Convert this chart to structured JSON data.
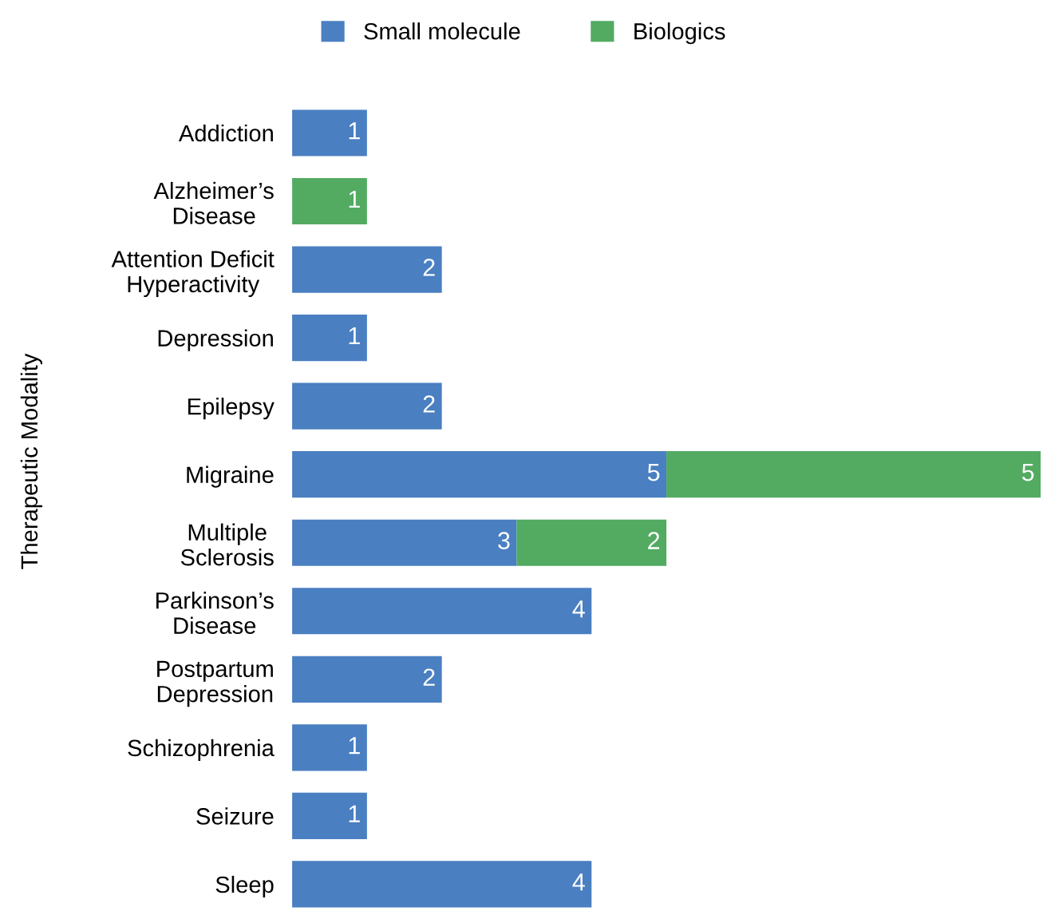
{
  "chart_data": {
    "type": "bar",
    "orientation": "horizontal",
    "stacked": true,
    "ylabel": "Therapeutic Modality",
    "categories": [
      "Addiction",
      "Alzheimer’s\nDisease",
      "Attention Deficit\nHyperactivity",
      "Depression",
      "Epilepsy",
      "Migraine",
      "Multiple\nSclerosis",
      "Parkinson’s\nDisease",
      "Postpartum\nDepression",
      "Schizophrenia",
      "Seizure",
      "Sleep"
    ],
    "series": [
      {
        "name": "Small molecule",
        "color": "#4a7fc1",
        "values": [
          1,
          null,
          2,
          1,
          2,
          5,
          3,
          4,
          2,
          1,
          1,
          4
        ]
      },
      {
        "name": "Biologics",
        "color": "#52ab61",
        "values": [
          null,
          1,
          null,
          null,
          null,
          5,
          2,
          null,
          null,
          null,
          null,
          null
        ]
      }
    ],
    "xlim": [
      0,
      10
    ],
    "data_labels": true,
    "legend": "top",
    "grid": false
  }
}
